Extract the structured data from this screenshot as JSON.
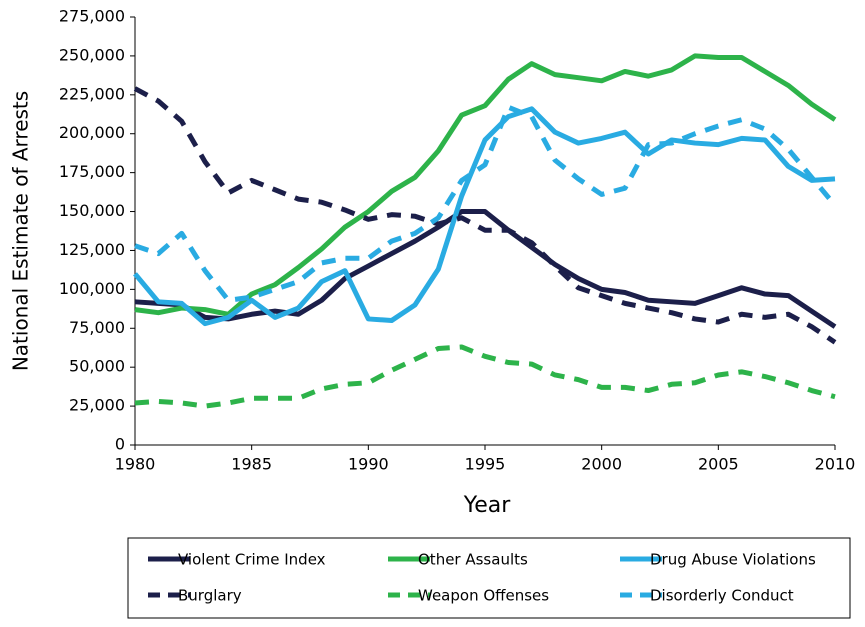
{
  "chart_data": {
    "type": "line",
    "x_label": "Year",
    "y_label": "National Estimate of Arrests",
    "x": [
      1980,
      1981,
      1982,
      1983,
      1984,
      1985,
      1986,
      1987,
      1988,
      1989,
      1990,
      1991,
      1992,
      1993,
      1994,
      1995,
      1996,
      1997,
      1998,
      1999,
      2000,
      2001,
      2002,
      2003,
      2004,
      2005,
      2006,
      2007,
      2008,
      2009,
      2010
    ],
    "xlim": [
      1980,
      2010
    ],
    "xticks": [
      1980,
      1985,
      1990,
      1995,
      2000,
      2005,
      2010
    ],
    "ylim": [
      0,
      275000
    ],
    "yticks": [
      0,
      {
        "value": 25000,
        "label": "25,000"
      },
      {
        "value": 50000,
        "label": "50,000"
      },
      {
        "value": 75000,
        "label": "75,000"
      },
      {
        "value": 100000,
        "label": "100,000"
      },
      {
        "value": 125000,
        "label": "125,000"
      },
      {
        "value": 150000,
        "label": "150,000"
      },
      {
        "value": 175000,
        "label": "175,000"
      },
      {
        "value": 200000,
        "label": "200,000"
      },
      {
        "value": 225000,
        "label": "225,000"
      },
      {
        "value": 250000,
        "label": "250,000"
      },
      {
        "value": 275000,
        "label": "275,000"
      }
    ],
    "legend": "bottom",
    "series": [
      {
        "name": "Violent Crime Index",
        "color": "#1c1f4a",
        "dashed": false,
        "values": [
          92000,
          91000,
          90000,
          82000,
          81000,
          84000,
          86000,
          84000,
          93000,
          107000,
          115000,
          123000,
          131000,
          140000,
          150000,
          150000,
          138000,
          127000,
          116000,
          107000,
          100000,
          98000,
          93000,
          92000,
          91000,
          96000,
          101000,
          97000,
          96000,
          86000,
          76000
        ]
      },
      {
        "name": "Other Assaults",
        "color": "#2db34a",
        "dashed": false,
        "values": [
          87000,
          85000,
          88000,
          87000,
          84000,
          97000,
          103000,
          114000,
          126000,
          140000,
          150000,
          163000,
          172000,
          189000,
          212000,
          218000,
          235000,
          245000,
          238000,
          236000,
          234000,
          240000,
          237000,
          241000,
          250000,
          249000,
          249000,
          240000,
          231000,
          219000,
          209000
        ]
      },
      {
        "name": "Drug Abuse Violations",
        "color": "#29abe2",
        "dashed": false,
        "values": [
          110000,
          92000,
          91000,
          78000,
          82000,
          93000,
          82000,
          88000,
          105000,
          112000,
          81000,
          80000,
          90000,
          113000,
          160000,
          196000,
          211000,
          216000,
          201000,
          194000,
          197000,
          201000,
          187000,
          196000,
          194000,
          193000,
          197000,
          196000,
          179000,
          170000,
          171000
        ]
      },
      {
        "name": "Burglary",
        "color": "#1c1f4a",
        "dashed": true,
        "values": [
          229000,
          221000,
          208000,
          182000,
          162000,
          170000,
          164000,
          158000,
          156000,
          151000,
          145000,
          148000,
          147000,
          142000,
          146000,
          138000,
          138000,
          130000,
          115000,
          101000,
          96000,
          91000,
          88000,
          85000,
          81000,
          79000,
          84000,
          82000,
          84000,
          76000,
          66000
        ]
      },
      {
        "name": "Weapon Offenses",
        "color": "#2db34a",
        "dashed": true,
        "values": [
          27000,
          28000,
          27000,
          25000,
          27000,
          30000,
          30000,
          30000,
          36000,
          39000,
          40000,
          48000,
          55000,
          62000,
          63000,
          57000,
          53000,
          52000,
          45000,
          42000,
          37000,
          37000,
          35000,
          39000,
          40000,
          45000,
          47000,
          44000,
          40000,
          35000,
          31000
        ]
      },
      {
        "name": "Disorderly Conduct",
        "color": "#29abe2",
        "dashed": true,
        "values": [
          128000,
          123000,
          136000,
          112000,
          93000,
          95000,
          100000,
          105000,
          117000,
          120000,
          120000,
          131000,
          136000,
          146000,
          170000,
          180000,
          217000,
          211000,
          183000,
          171000,
          161000,
          165000,
          193000,
          194000,
          200000,
          205000,
          209000,
          203000,
          190000,
          172000,
          154000
        ]
      }
    ]
  }
}
